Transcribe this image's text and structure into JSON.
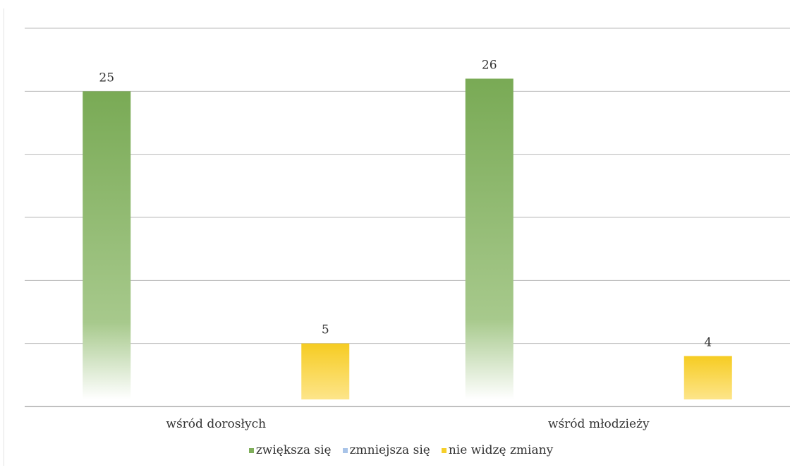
{
  "chart_data": {
    "type": "bar",
    "categories": [
      "wśród dorosłych",
      "wśród młodzieży"
    ],
    "series": [
      {
        "name": "zwiększa się",
        "values": [
          25,
          26
        ],
        "color": "#7fae5a"
      },
      {
        "name": "zmniejsza się",
        "values": [
          0,
          0
        ],
        "color": "#a9c4e8"
      },
      {
        "name": "nie widzę zmiany",
        "values": [
          5,
          4
        ],
        "color": "#f6cf2a"
      }
    ],
    "ylim": [
      0,
      30
    ],
    "grid": true,
    "legend": "bottom",
    "data_labels": true
  }
}
